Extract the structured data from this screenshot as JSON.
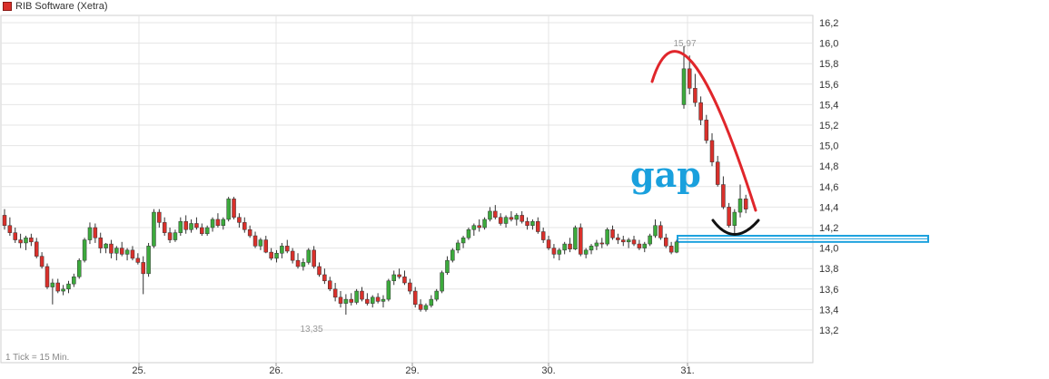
{
  "legend": {
    "label": "RIB Software (Xetra)",
    "color": "#d9302b"
  },
  "tick_info": "1 Tick = 15 Min.",
  "annotations": {
    "gap_label": "gap"
  },
  "colors": {
    "up": "#3caa3c",
    "down": "#d9302b",
    "arc_red": "#e0262b",
    "gap_box": "#1aa0dd",
    "grid": "#e4e4e4",
    "axis_text": "#333333"
  },
  "chart_data": {
    "type": "candlestick",
    "title": "",
    "series": [
      {
        "name": "RIB Software (Xetra)"
      }
    ],
    "x_ticks": [
      "25.",
      "26.",
      "29.",
      "30.",
      "31."
    ],
    "y_ticks": [
      "16,2",
      "16,0",
      "15,8",
      "15,6",
      "15,4",
      "15,2",
      "15,0",
      "14,8",
      "14,6",
      "14,4",
      "14,2",
      "14,0",
      "13,8",
      "13,6",
      "13,4",
      "13,2"
    ],
    "ylim": [
      13.0,
      16.3
    ],
    "grid": true,
    "value_labels": {
      "high": "15,97",
      "low": "13,35"
    },
    "high_value": 15.97,
    "low_value": 13.35,
    "gap_zone": [
      14.06,
      14.12
    ],
    "ohlc": [
      [
        14.32,
        14.38,
        14.18,
        14.22
      ],
      [
        14.22,
        14.3,
        14.12,
        14.15
      ],
      [
        14.15,
        14.2,
        14.05,
        14.08
      ],
      [
        14.08,
        14.14,
        14.0,
        14.05
      ],
      [
        14.05,
        14.12,
        13.98,
        14.1
      ],
      [
        14.1,
        14.14,
        14.02,
        14.06
      ],
      [
        14.06,
        14.1,
        13.9,
        13.92
      ],
      [
        13.92,
        13.96,
        13.8,
        13.82
      ],
      [
        13.82,
        13.85,
        13.6,
        13.62
      ],
      [
        13.62,
        13.7,
        13.45,
        13.66
      ],
      [
        13.66,
        13.7,
        13.56,
        13.58
      ],
      [
        13.58,
        13.64,
        13.54,
        13.6
      ],
      [
        13.6,
        13.68,
        13.56,
        13.65
      ],
      [
        13.65,
        13.75,
        13.62,
        13.72
      ],
      [
        13.72,
        13.9,
        13.7,
        13.88
      ],
      [
        13.88,
        14.1,
        13.86,
        14.08
      ],
      [
        14.08,
        14.25,
        14.04,
        14.2
      ],
      [
        14.2,
        14.24,
        14.05,
        14.1
      ],
      [
        14.1,
        14.15,
        13.95,
        14.0
      ],
      [
        14.0,
        14.05,
        13.95,
        14.04
      ],
      [
        14.04,
        14.08,
        13.9,
        13.95
      ],
      [
        13.95,
        14.02,
        13.88,
        14.0
      ],
      [
        14.0,
        14.06,
        13.92,
        13.94
      ],
      [
        13.94,
        14.0,
        13.88,
        13.98
      ],
      [
        13.98,
        14.02,
        13.88,
        13.9
      ],
      [
        13.9,
        13.95,
        13.84,
        13.86
      ],
      [
        13.86,
        13.92,
        13.55,
        13.75
      ],
      [
        13.75,
        14.05,
        13.72,
        14.02
      ],
      [
        14.02,
        14.38,
        14.0,
        14.35
      ],
      [
        14.35,
        14.38,
        14.2,
        14.25
      ],
      [
        14.25,
        14.3,
        14.12,
        14.15
      ],
      [
        14.15,
        14.2,
        14.05,
        14.08
      ],
      [
        14.08,
        14.18,
        14.06,
        14.15
      ],
      [
        14.15,
        14.3,
        14.12,
        14.26
      ],
      [
        14.26,
        14.32,
        14.14,
        14.18
      ],
      [
        14.18,
        14.28,
        14.15,
        14.24
      ],
      [
        14.24,
        14.3,
        14.18,
        14.2
      ],
      [
        14.2,
        14.24,
        14.12,
        14.14
      ],
      [
        14.14,
        14.22,
        14.12,
        14.2
      ],
      [
        14.2,
        14.3,
        14.16,
        14.28
      ],
      [
        14.28,
        14.34,
        14.2,
        14.22
      ],
      [
        14.22,
        14.3,
        14.18,
        14.28
      ],
      [
        14.28,
        14.5,
        14.26,
        14.48
      ],
      [
        14.48,
        14.5,
        14.28,
        14.3
      ],
      [
        14.3,
        14.34,
        14.2,
        14.25
      ],
      [
        14.25,
        14.3,
        14.15,
        14.18
      ],
      [
        14.18,
        14.22,
        14.1,
        14.12
      ],
      [
        14.12,
        14.16,
        14.0,
        14.02
      ],
      [
        14.02,
        14.1,
        13.98,
        14.08
      ],
      [
        14.08,
        14.12,
        13.95,
        13.96
      ],
      [
        13.96,
        14.0,
        13.88,
        13.9
      ],
      [
        13.9,
        13.98,
        13.86,
        13.95
      ],
      [
        13.95,
        14.05,
        13.9,
        14.02
      ],
      [
        14.02,
        14.08,
        13.95,
        13.97
      ],
      [
        13.97,
        14.0,
        13.85,
        13.88
      ],
      [
        13.88,
        13.95,
        13.8,
        13.82
      ],
      [
        13.82,
        13.9,
        13.78,
        13.86
      ],
      [
        13.86,
        14.0,
        13.84,
        13.98
      ],
      [
        13.98,
        14.02,
        13.8,
        13.82
      ],
      [
        13.82,
        13.86,
        13.72,
        13.74
      ],
      [
        13.74,
        13.8,
        13.65,
        13.68
      ],
      [
        13.68,
        13.72,
        13.58,
        13.6
      ],
      [
        13.6,
        13.66,
        13.48,
        13.52
      ],
      [
        13.52,
        13.58,
        13.42,
        13.46
      ],
      [
        13.46,
        13.55,
        13.35,
        13.5
      ],
      [
        13.5,
        13.56,
        13.44,
        13.47
      ],
      [
        13.47,
        13.6,
        13.45,
        13.58
      ],
      [
        13.58,
        13.62,
        13.48,
        13.5
      ],
      [
        13.5,
        13.56,
        13.44,
        13.46
      ],
      [
        13.46,
        13.54,
        13.42,
        13.52
      ],
      [
        13.52,
        13.56,
        13.46,
        13.48
      ],
      [
        13.48,
        13.54,
        13.42,
        13.5
      ],
      [
        13.5,
        13.7,
        13.48,
        13.68
      ],
      [
        13.68,
        13.78,
        13.64,
        13.74
      ],
      [
        13.74,
        13.8,
        13.7,
        13.72
      ],
      [
        13.72,
        13.78,
        13.64,
        13.66
      ],
      [
        13.66,
        13.7,
        13.55,
        13.58
      ],
      [
        13.58,
        13.62,
        13.42,
        13.45
      ],
      [
        13.45,
        13.5,
        13.38,
        13.4
      ],
      [
        13.4,
        13.46,
        13.38,
        13.44
      ],
      [
        13.44,
        13.54,
        13.42,
        13.5
      ],
      [
        13.5,
        13.6,
        13.48,
        13.58
      ],
      [
        13.58,
        13.78,
        13.56,
        13.76
      ],
      [
        13.76,
        13.92,
        13.74,
        13.88
      ],
      [
        13.88,
        14.0,
        13.86,
        13.98
      ],
      [
        13.98,
        14.08,
        13.95,
        14.05
      ],
      [
        14.05,
        14.12,
        14.0,
        14.1
      ],
      [
        14.1,
        14.2,
        14.08,
        14.18
      ],
      [
        14.18,
        14.24,
        14.12,
        14.22
      ],
      [
        14.22,
        14.28,
        14.16,
        14.2
      ],
      [
        14.2,
        14.3,
        14.18,
        14.28
      ],
      [
        14.28,
        14.4,
        14.26,
        14.36
      ],
      [
        14.36,
        14.42,
        14.28,
        14.3
      ],
      [
        14.3,
        14.34,
        14.22,
        14.24
      ],
      [
        14.24,
        14.32,
        14.2,
        14.3
      ],
      [
        14.3,
        14.36,
        14.26,
        14.28
      ],
      [
        14.28,
        14.34,
        14.22,
        14.32
      ],
      [
        14.32,
        14.36,
        14.24,
        14.26
      ],
      [
        14.26,
        14.3,
        14.18,
        14.22
      ],
      [
        14.22,
        14.28,
        14.18,
        14.26
      ],
      [
        14.26,
        14.3,
        14.14,
        14.16
      ],
      [
        14.16,
        14.2,
        14.05,
        14.08
      ],
      [
        14.08,
        14.12,
        13.98,
        14.0
      ],
      [
        14.0,
        14.04,
        13.9,
        13.94
      ],
      [
        13.94,
        14.0,
        13.88,
        13.98
      ],
      [
        13.98,
        14.06,
        13.94,
        14.04
      ],
      [
        14.04,
        14.1,
        13.96,
        13.99
      ],
      [
        13.99,
        14.22,
        13.98,
        14.2
      ],
      [
        14.2,
        14.24,
        13.92,
        13.94
      ],
      [
        13.94,
        14.0,
        13.9,
        13.98
      ],
      [
        13.98,
        14.04,
        13.94,
        14.02
      ],
      [
        14.02,
        14.08,
        13.98,
        14.05
      ],
      [
        14.05,
        14.1,
        14.0,
        14.04
      ],
      [
        14.04,
        14.2,
        14.02,
        14.18
      ],
      [
        14.18,
        14.22,
        14.08,
        14.1
      ],
      [
        14.1,
        14.14,
        14.04,
        14.08
      ],
      [
        14.08,
        14.12,
        14.02,
        14.06
      ],
      [
        14.06,
        14.1,
        14.0,
        14.08
      ],
      [
        14.08,
        14.12,
        14.02,
        14.04
      ],
      [
        14.04,
        14.08,
        13.98,
        14.0
      ],
      [
        14.0,
        14.06,
        13.96,
        14.04
      ],
      [
        14.04,
        14.14,
        14.02,
        14.12
      ],
      [
        14.12,
        14.28,
        14.1,
        14.22
      ],
      [
        14.22,
        14.26,
        14.08,
        14.1
      ],
      [
        14.1,
        14.14,
        14.0,
        14.02
      ],
      [
        14.02,
        14.06,
        13.94,
        13.96
      ],
      [
        13.96,
        14.08,
        13.95,
        14.06
      ],
      [
        15.4,
        15.97,
        15.36,
        15.75
      ],
      [
        15.75,
        15.88,
        15.5,
        15.56
      ],
      [
        15.56,
        15.7,
        15.38,
        15.42
      ],
      [
        15.42,
        15.48,
        15.2,
        15.25
      ],
      [
        15.25,
        15.3,
        15.02,
        15.05
      ],
      [
        15.05,
        15.12,
        14.8,
        14.84
      ],
      [
        14.84,
        14.9,
        14.6,
        14.62
      ],
      [
        14.62,
        14.7,
        14.38,
        14.4
      ],
      [
        14.4,
        14.44,
        14.2,
        14.22
      ],
      [
        14.22,
        14.38,
        14.14,
        14.35
      ],
      [
        14.35,
        14.62,
        14.3,
        14.48
      ],
      [
        14.48,
        14.52,
        14.34,
        14.38
      ]
    ]
  }
}
